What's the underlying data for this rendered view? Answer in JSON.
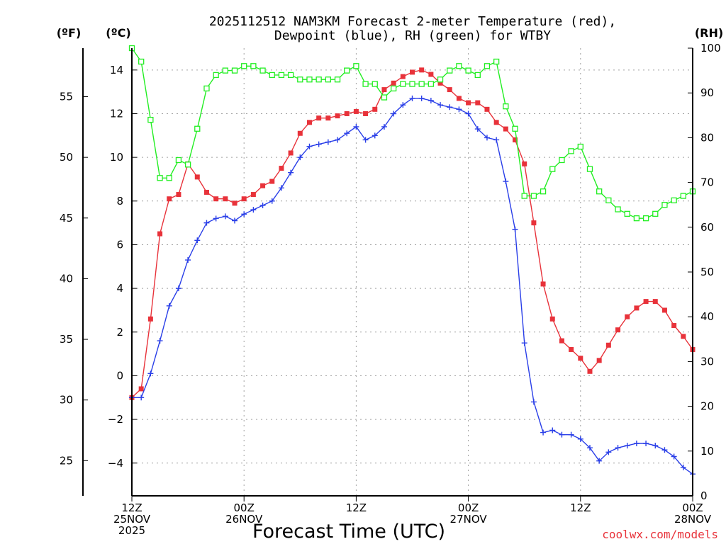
{
  "chart_data": {
    "type": "line",
    "title_line1": "2025112512 NAM3KM Forecast 2-meter Temperature (red),",
    "title_line2": "Dewpoint (blue), RH (green) for WTBY",
    "left_unit_f": "(ºF)",
    "left_unit_c": "(ºC)",
    "right_unit": "(RH)",
    "xlabel": "Forecast Time (UTC)",
    "credit": "coolwx.com/models",
    "x_hours_range": [
      0,
      60
    ],
    "celsius_axis": {
      "range": [
        -5.5,
        15
      ],
      "ticks": [
        -4,
        -2,
        0,
        2,
        4,
        6,
        8,
        10,
        12,
        14
      ],
      "labels": [
        "−4",
        "−2",
        "0",
        "2",
        "4",
        "6",
        "8",
        "10",
        "12",
        "14"
      ]
    },
    "fahrenheit_axis": {
      "ticks": [
        25,
        30,
        35,
        40,
        45,
        50,
        55
      ],
      "labels": [
        "25",
        "30",
        "35",
        "40",
        "45",
        "50",
        "55"
      ]
    },
    "rh_axis": {
      "range": [
        0,
        100
      ],
      "ticks": [
        0,
        10,
        20,
        30,
        40,
        50,
        60,
        70,
        80,
        90,
        100
      ],
      "labels": [
        "0",
        "10",
        "20",
        "30",
        "40",
        "50",
        "60",
        "70",
        "80",
        "90",
        "100"
      ]
    },
    "x_ticks": [
      {
        "hour": 0,
        "lines": [
          "12Z",
          "25NOV",
          "2025"
        ]
      },
      {
        "hour": 12,
        "lines": [
          "00Z",
          "26NOV"
        ]
      },
      {
        "hour": 24,
        "lines": [
          "12Z"
        ]
      },
      {
        "hour": 36,
        "lines": [
          "00Z",
          "27NOV"
        ]
      },
      {
        "hour": 48,
        "lines": [
          "12Z"
        ]
      },
      {
        "hour": 60,
        "lines": [
          "00Z",
          "28NOV"
        ]
      }
    ],
    "x_hours": [
      0,
      1,
      2,
      3,
      4,
      5,
      6,
      7,
      8,
      9,
      10,
      11,
      12,
      13,
      14,
      15,
      16,
      17,
      18,
      19,
      20,
      21,
      22,
      23,
      24,
      25,
      26,
      27,
      28,
      29,
      30,
      31,
      32,
      33,
      34,
      35,
      36,
      37,
      38,
      39,
      40,
      41,
      42,
      43,
      44,
      45,
      46,
      47,
      48,
      49,
      50,
      51,
      52,
      53,
      54,
      55,
      56,
      57,
      58,
      59,
      60
    ],
    "series": [
      {
        "name": "Temperature",
        "unit": "C",
        "color": "#e8323a",
        "marker": "filled-square",
        "values": [
          -1.0,
          -0.6,
          2.6,
          6.5,
          8.1,
          8.3,
          9.7,
          9.1,
          8.4,
          8.1,
          8.1,
          7.9,
          8.1,
          8.3,
          8.7,
          8.9,
          9.5,
          10.2,
          11.1,
          11.6,
          11.8,
          11.8,
          11.9,
          12.0,
          12.1,
          12.0,
          12.2,
          13.1,
          13.4,
          13.7,
          13.9,
          14.0,
          13.8,
          13.4,
          13.1,
          12.7,
          12.5,
          12.5,
          12.2,
          11.6,
          11.3,
          10.8,
          9.7,
          7.0,
          4.2,
          2.6,
          1.6,
          1.2,
          0.8,
          0.2,
          0.7,
          1.4,
          2.1,
          2.7,
          3.1,
          3.4,
          3.4,
          3.0,
          2.3,
          1.8,
          1.2
        ]
      },
      {
        "name": "Dewpoint",
        "unit": "C",
        "color": "#2a3fe8",
        "marker": "plus",
        "values": [
          -1.0,
          -1.0,
          0.1,
          1.6,
          3.2,
          4.0,
          5.3,
          6.2,
          7.0,
          7.2,
          7.3,
          7.1,
          7.4,
          7.6,
          7.8,
          8.0,
          8.6,
          9.3,
          10.0,
          10.5,
          10.6,
          10.7,
          10.8,
          11.1,
          11.4,
          10.8,
          11.0,
          11.4,
          12.0,
          12.4,
          12.7,
          12.7,
          12.6,
          12.4,
          12.3,
          12.2,
          12.0,
          11.3,
          10.9,
          10.8,
          8.9,
          6.7,
          1.5,
          -1.2,
          -2.6,
          -2.5,
          -2.7,
          -2.7,
          -2.9,
          -3.3,
          -3.9,
          -3.5,
          -3.3,
          -3.2,
          -3.1,
          -3.1,
          -3.2,
          -3.4,
          -3.7,
          -4.2,
          -4.5
        ]
      },
      {
        "name": "RH",
        "unit": "%",
        "color": "#22ee22",
        "marker": "open-square",
        "values": [
          100,
          97,
          84,
          71,
          71,
          75,
          74,
          82,
          91,
          94,
          95,
          95,
          96,
          96,
          95,
          94,
          94,
          94,
          93,
          93,
          93,
          93,
          93,
          95,
          96,
          92,
          92,
          89,
          91,
          92,
          92,
          92,
          92,
          93,
          95,
          96,
          95,
          94,
          96,
          97,
          87,
          82,
          67,
          67,
          68,
          73,
          75,
          77,
          78,
          73,
          68,
          66,
          64,
          63,
          62,
          62,
          63,
          65,
          66,
          67,
          68
        ]
      }
    ]
  }
}
